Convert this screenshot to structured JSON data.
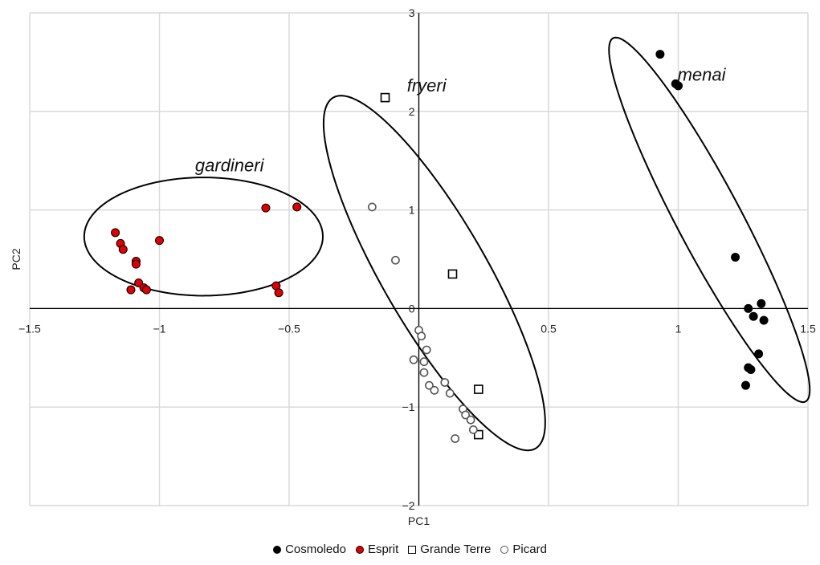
{
  "chart_data": {
    "type": "scatter",
    "xlabel": "PC1",
    "ylabel": "PC2",
    "xlim": [
      -1.5,
      1.5
    ],
    "ylim": [
      -2,
      3
    ],
    "xticks": [
      -1.5,
      -1,
      -0.5,
      0.5,
      1,
      1.5
    ],
    "xtick_labels": [
      "−1.5",
      "−1",
      "−0.5",
      "0.5",
      "1",
      "1.5"
    ],
    "yticks": [
      -2,
      -1,
      0,
      1,
      2,
      3
    ],
    "ytick_labels": [
      "−2",
      "−1",
      "0",
      "1",
      "2",
      "3"
    ],
    "grid": true,
    "legend_position": "bottom",
    "series": [
      {
        "name": "Cosmoledo",
        "marker": "filled-circle",
        "color": "#000000",
        "points": [
          [
            0.93,
            2.58
          ],
          [
            0.99,
            2.28
          ],
          [
            1.0,
            2.26
          ],
          [
            1.22,
            0.52
          ],
          [
            1.27,
            0.0
          ],
          [
            1.32,
            0.05
          ],
          [
            1.29,
            -0.08
          ],
          [
            1.33,
            -0.12
          ],
          [
            1.31,
            -0.46
          ],
          [
            1.27,
            -0.6
          ],
          [
            1.28,
            -0.62
          ],
          [
            1.26,
            -0.78
          ]
        ]
      },
      {
        "name": "Esprit",
        "marker": "filled-circle",
        "color": "#e00000",
        "points": [
          [
            -1.17,
            0.77
          ],
          [
            -1.15,
            0.66
          ],
          [
            -1.14,
            0.6
          ],
          [
            -1.09,
            0.48
          ],
          [
            -1.09,
            0.45
          ],
          [
            -1.0,
            0.69
          ],
          [
            -1.08,
            0.26
          ],
          [
            -1.06,
            0.21
          ],
          [
            -1.05,
            0.19
          ],
          [
            -1.11,
            0.19
          ],
          [
            -0.59,
            1.02
          ],
          [
            -0.47,
            1.03
          ],
          [
            -0.55,
            0.23
          ],
          [
            -0.54,
            0.16
          ]
        ]
      },
      {
        "name": "Grande Terre",
        "marker": "open-square",
        "color": "#000000",
        "points": [
          [
            -0.13,
            2.14
          ],
          [
            0.13,
            0.35
          ],
          [
            0.23,
            -0.82
          ],
          [
            0.23,
            -1.28
          ]
        ]
      },
      {
        "name": "Picard",
        "marker": "open-circle",
        "color": "#555555",
        "points": [
          [
            -0.18,
            1.03
          ],
          [
            -0.09,
            0.49
          ],
          [
            0.0,
            -0.22
          ],
          [
            0.01,
            -0.28
          ],
          [
            0.03,
            -0.42
          ],
          [
            -0.02,
            -0.52
          ],
          [
            0.02,
            -0.54
          ],
          [
            0.02,
            -0.65
          ],
          [
            0.04,
            -0.78
          ],
          [
            0.06,
            -0.83
          ],
          [
            0.1,
            -0.75
          ],
          [
            0.12,
            -0.86
          ],
          [
            0.17,
            -1.02
          ],
          [
            0.18,
            -1.08
          ],
          [
            0.2,
            -1.13
          ],
          [
            0.21,
            -1.23
          ],
          [
            0.14,
            -1.32
          ]
        ]
      }
    ],
    "groups": [
      {
        "label": "gardineri",
        "cx": -0.83,
        "cy": 0.73,
        "rx": 0.46,
        "ry": 0.6,
        "angle": 0,
        "label_at": [
          -0.73,
          1.39
        ]
      },
      {
        "label": "fryeri",
        "cx": 0.06,
        "cy": 0.36,
        "rx": 0.23,
        "ry": 1.8,
        "angle": 0,
        "shear": -0.2,
        "label_at": [
          0.03,
          2.2
        ]
      },
      {
        "label": "menai",
        "cx": 1.12,
        "cy": 0.9,
        "rx": 0.14,
        "ry": 1.85,
        "angle": 0,
        "shear": -0.195,
        "label_at": [
          1.09,
          2.31
        ]
      }
    ]
  }
}
